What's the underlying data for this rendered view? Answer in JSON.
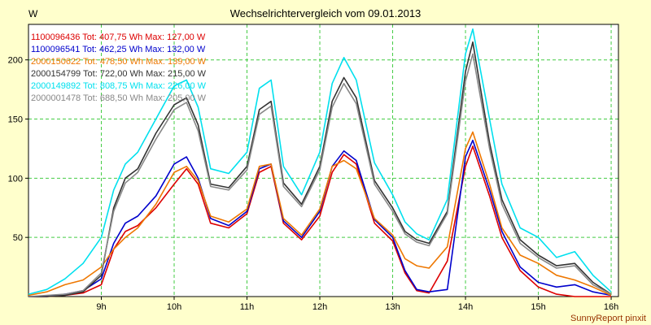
{
  "chart_data": {
    "type": "line",
    "title": "Wechselrichtervergleich vom 09.01.2013",
    "xlabel": "",
    "ylabel": "W",
    "xlim": [
      8.0,
      16.1
    ],
    "ylim": [
      0,
      230
    ],
    "grid": true,
    "grid_style": "dashed-green",
    "legend_position": "top-left-inside",
    "x_ticks": [
      {
        "value": 9,
        "label": "9h"
      },
      {
        "value": 10,
        "label": "10h"
      },
      {
        "value": 11,
        "label": "11h"
      },
      {
        "value": 12,
        "label": "12h"
      },
      {
        "value": 13,
        "label": "13h"
      },
      {
        "value": 14,
        "label": "14h"
      },
      {
        "value": 15,
        "label": "15h"
      },
      {
        "value": 16,
        "label": "16h"
      }
    ],
    "y_ticks": [
      {
        "value": 50,
        "label": "50"
      },
      {
        "value": 100,
        "label": "100"
      },
      {
        "value": 150,
        "label": "150"
      },
      {
        "value": 200,
        "label": "200"
      }
    ],
    "x": [
      8.0,
      8.25,
      8.5,
      8.75,
      9.0,
      9.17,
      9.33,
      9.5,
      9.75,
      10.0,
      10.17,
      10.33,
      10.5,
      10.75,
      11.0,
      11.17,
      11.33,
      11.5,
      11.75,
      12.0,
      12.17,
      12.33,
      12.5,
      12.75,
      13.0,
      13.17,
      13.33,
      13.5,
      13.75,
      14.0,
      14.1,
      14.33,
      14.5,
      14.75,
      15.0,
      15.25,
      15.5,
      15.75,
      16.0
    ],
    "series": [
      {
        "name": "1100096436",
        "color": "#dd0000",
        "legend": "1100096436 Tot: 407,75 Wh Max: 127,00 W",
        "values": [
          0,
          0,
          1,
          3,
          10,
          40,
          55,
          60,
          75,
          95,
          108,
          95,
          62,
          58,
          70,
          105,
          110,
          62,
          48,
          68,
          105,
          120,
          112,
          62,
          47,
          20,
          5,
          3,
          30,
          110,
          127,
          85,
          50,
          22,
          8,
          2,
          0,
          0,
          0
        ]
      },
      {
        "name": "1100096541",
        "color": "#0000cc",
        "legend": "1100096541 Tot: 462,25 Wh Max: 132,00 W",
        "values": [
          0,
          0,
          2,
          5,
          15,
          45,
          62,
          68,
          85,
          112,
          118,
          100,
          66,
          60,
          72,
          108,
          112,
          64,
          50,
          72,
          110,
          123,
          115,
          65,
          50,
          22,
          6,
          4,
          6,
          118,
          132,
          90,
          55,
          25,
          12,
          8,
          10,
          4,
          1
        ]
      },
      {
        "name": "2000150622",
        "color": "#ee7700",
        "legend": "2000150622 Tot: 478,50 Wh Max: 139,00 W",
        "values": [
          1,
          4,
          10,
          14,
          25,
          40,
          50,
          58,
          78,
          105,
          110,
          98,
          68,
          63,
          74,
          110,
          112,
          66,
          52,
          74,
          110,
          115,
          108,
          66,
          52,
          32,
          26,
          24,
          42,
          125,
          139,
          95,
          58,
          35,
          28,
          18,
          14,
          8,
          1
        ]
      },
      {
        "name": "2000154799",
        "color": "#333333",
        "legend": "2000154799 Tot: 722,00 Wh Max: 215,00 W",
        "values": [
          0,
          0,
          1,
          4,
          18,
          75,
          100,
          108,
          138,
          162,
          168,
          145,
          95,
          92,
          110,
          158,
          165,
          96,
          78,
          110,
          165,
          185,
          168,
          98,
          75,
          55,
          48,
          45,
          72,
          190,
          215,
          130,
          82,
          48,
          35,
          26,
          28,
          12,
          2
        ]
      },
      {
        "name": "2000149892",
        "color": "#00e0ee",
        "legend": "2000149892 Tot: 808,75 Wh Max: 226,00 W",
        "values": [
          2,
          6,
          15,
          28,
          50,
          90,
          112,
          122,
          150,
          178,
          183,
          160,
          108,
          104,
          122,
          176,
          183,
          110,
          86,
          122,
          180,
          202,
          183,
          113,
          86,
          63,
          53,
          48,
          82,
          205,
          226,
          150,
          95,
          58,
          50,
          33,
          38,
          18,
          4
        ]
      },
      {
        "name": "2000001478",
        "color": "#888888",
        "legend": "2000001478 Tot: 688,50 Wh Max: 205,00 W",
        "values": [
          0,
          1,
          2,
          5,
          20,
          72,
          96,
          105,
          133,
          158,
          164,
          140,
          93,
          90,
          107,
          154,
          161,
          93,
          76,
          107,
          160,
          180,
          163,
          95,
          72,
          53,
          46,
          43,
          70,
          182,
          205,
          125,
          78,
          45,
          33,
          24,
          26,
          10,
          2
        ]
      }
    ]
  },
  "footer": {
    "watermark": "SunnyReport pinxit"
  },
  "colors": {
    "page_background": "#ffffcc",
    "plot_background": "#ffffff",
    "grid": "#44cc44",
    "axis": "#000000",
    "title_text": "#000000",
    "watermark_text": "#993300"
  }
}
